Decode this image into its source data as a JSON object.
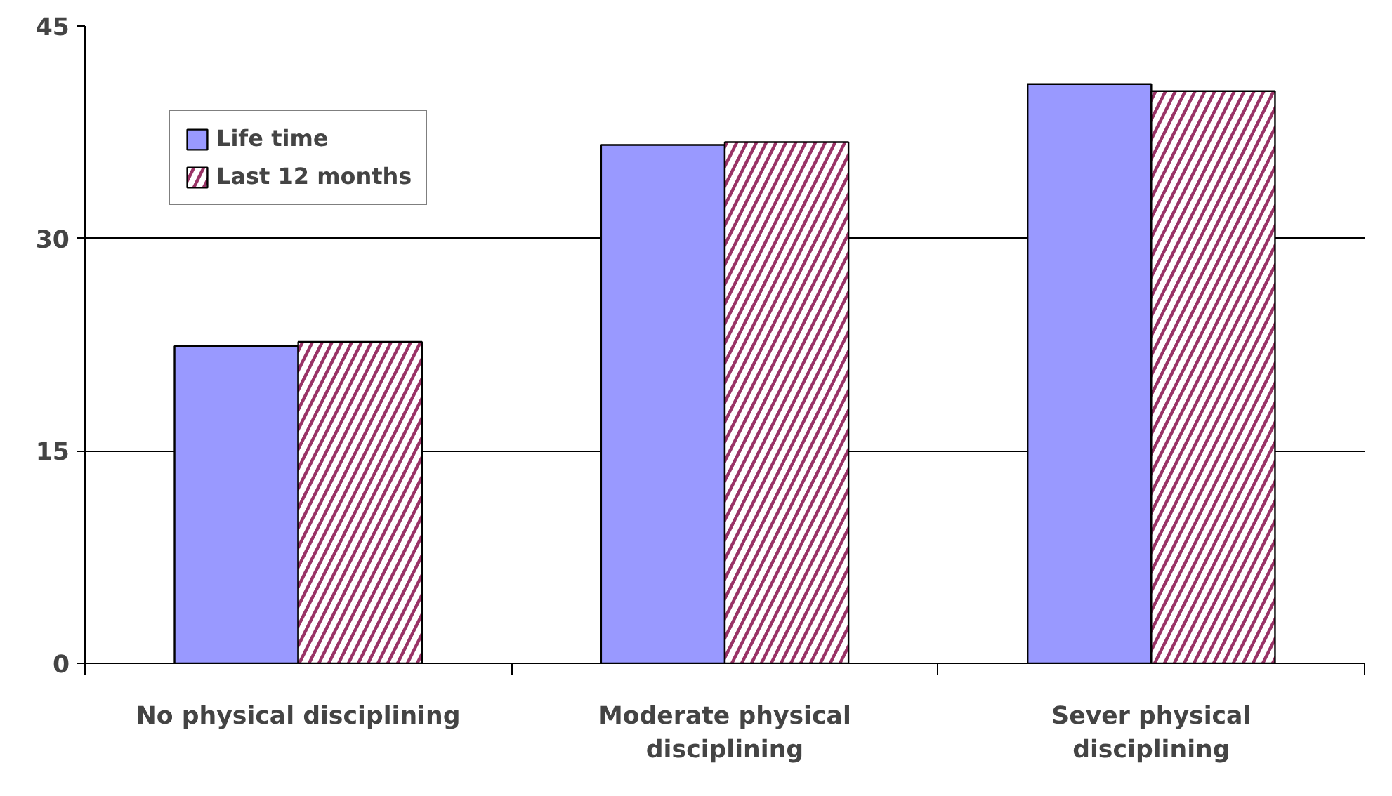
{
  "chart_data": {
    "type": "bar",
    "categories": [
      "No physical disciplining",
      "Moderate physical disciplining",
      "Sever physical disciplining"
    ],
    "series": [
      {
        "name": "Life time",
        "color": "#9999ff",
        "values": [
          22.4,
          36.6,
          40.9
        ]
      },
      {
        "name": "Last 12 months",
        "color": "#993366",
        "values": [
          22.7,
          36.8,
          40.4
        ]
      }
    ],
    "ylim": [
      0,
      45
    ],
    "yticks": [
      0,
      15,
      30,
      45
    ],
    "grid": "y",
    "legend": "top left"
  }
}
